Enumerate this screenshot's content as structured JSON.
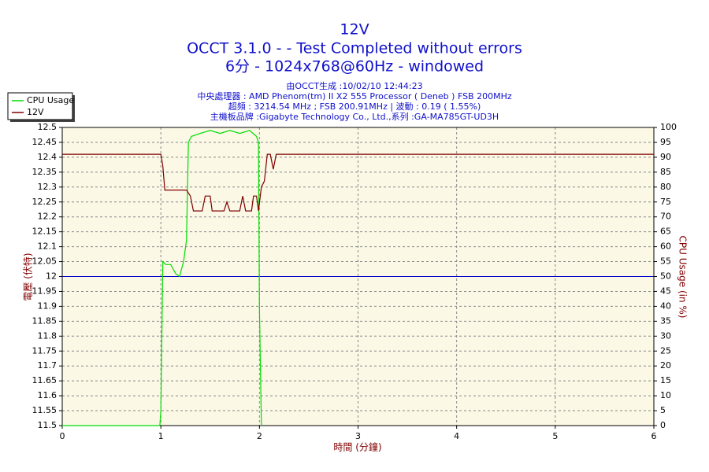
{
  "chart_data": {
    "type": "line",
    "title": "12V",
    "title_lines": [
      "OCCT 3.1.0 -  - Test Completed without errors",
      "6分 - 1024x768@60Hz - windowed"
    ],
    "subtitle_lines": [
      "由OCCT生成 :10/02/10 12:44:23",
      "中央處理器 : AMD Phenom(tm) II X2 555 Processor ( Deneb ) FSB 200MHz",
      "超頻 : 3214.54 MHz ; FSB 200.91MHz | 波動 : 0.19 ( 1.55%)",
      "主機板品牌 :Gigabyte Technology Co., Ltd.,系列 :GA-MA785GT-UD3H"
    ],
    "x_label": "時間 (分鐘)",
    "y_label": "電壓 (伏特)",
    "y2_label": "CPU Usage (in %)",
    "xlim": [
      0,
      6
    ],
    "xticks": [
      0,
      1,
      2,
      3,
      4,
      5,
      6
    ],
    "ylim": [
      11.5,
      12.5
    ],
    "yticks": [
      11.5,
      11.55,
      11.6,
      11.65,
      11.7,
      11.75,
      11.8,
      11.85,
      11.9,
      11.95,
      12,
      12.05,
      12.1,
      12.15,
      12.2,
      12.25,
      12.3,
      12.35,
      12.4,
      12.45,
      12.5
    ],
    "y2lim": [
      0,
      100
    ],
    "y2ticks": [
      0,
      5,
      10,
      15,
      20,
      25,
      30,
      35,
      40,
      45,
      50,
      55,
      60,
      65,
      70,
      75,
      80,
      85,
      90,
      95,
      100
    ],
    "grid": true,
    "legend": "top-left",
    "reference_lines": [
      {
        "value": 12,
        "color": "#0000cc"
      }
    ],
    "series": [
      {
        "name": "CPU Usage",
        "color": "#00dd00",
        "axis": "y2",
        "x": [
          0,
          0.99,
          1.0,
          1.02,
          1.05,
          1.1,
          1.15,
          1.19,
          1.23,
          1.26,
          1.28,
          1.31,
          1.4,
          1.5,
          1.6,
          1.7,
          1.8,
          1.9,
          1.97,
          1.99,
          2.0,
          2.02
        ],
        "values": [
          0,
          0,
          5,
          55,
          54,
          54,
          51,
          50,
          55,
          62,
          95,
          97,
          98,
          99,
          98,
          99,
          98,
          99,
          97,
          95,
          40,
          0
        ]
      },
      {
        "name": "12V",
        "color": "#800000",
        "x": [
          0,
          1.0,
          1.02,
          1.04,
          1.26,
          1.3,
          1.33,
          1.42,
          1.45,
          1.5,
          1.52,
          1.64,
          1.67,
          1.7,
          1.8,
          1.83,
          1.86,
          1.92,
          1.94,
          1.97,
          1.99,
          2.02,
          2.05,
          2.08,
          2.11,
          2.14,
          2.17,
          6
        ],
        "values": [
          12.41,
          12.41,
          12.37,
          12.29,
          12.29,
          12.27,
          12.22,
          12.22,
          12.27,
          12.27,
          12.22,
          12.22,
          12.25,
          12.22,
          12.22,
          12.27,
          12.22,
          12.22,
          12.27,
          12.27,
          12.22,
          12.3,
          12.32,
          12.41,
          12.41,
          12.36,
          12.41,
          12.41
        ]
      }
    ]
  }
}
